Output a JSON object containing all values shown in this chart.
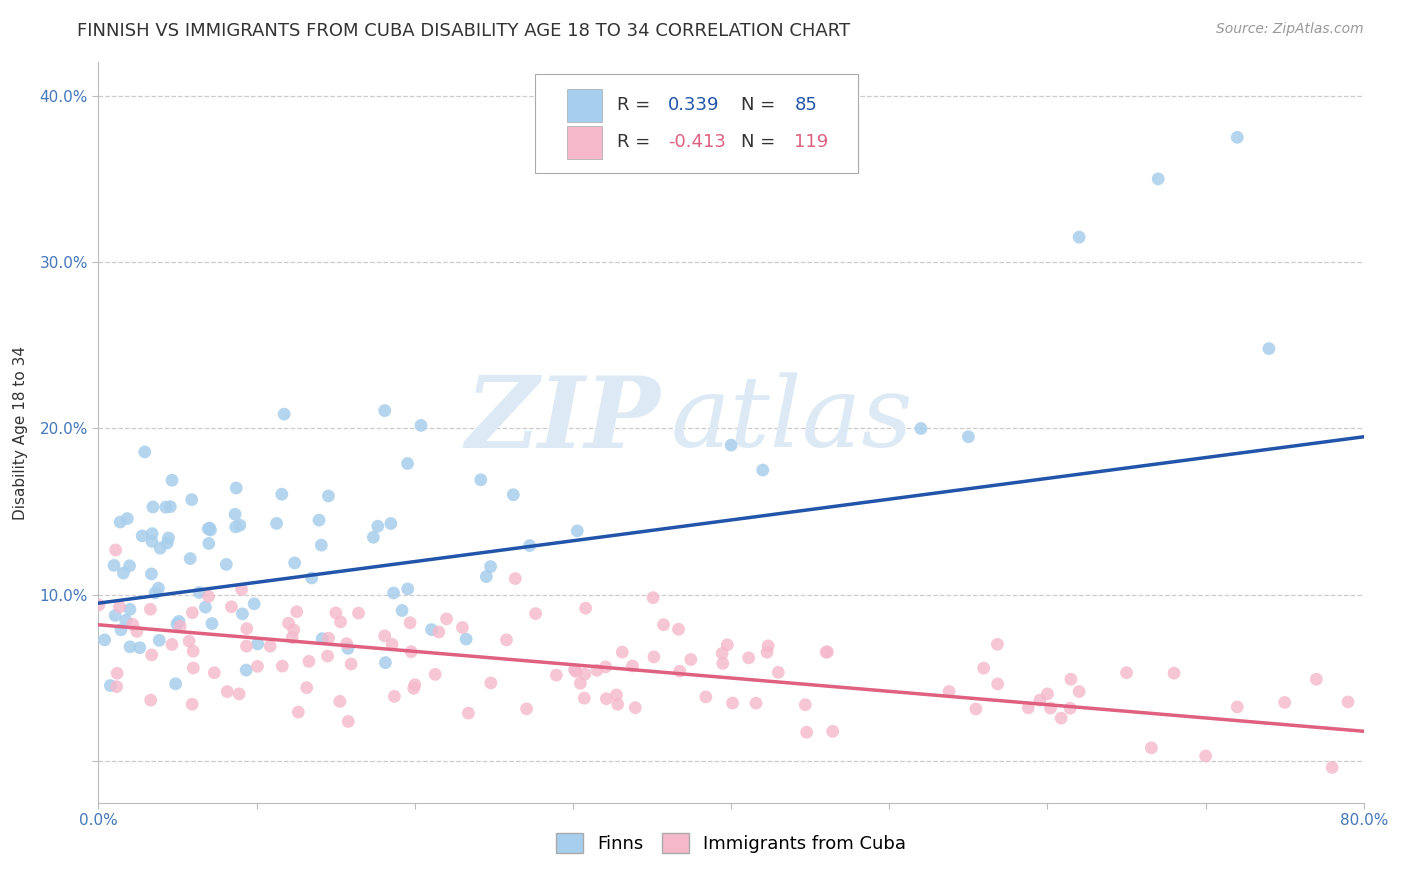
{
  "title": "FINNISH VS IMMIGRANTS FROM CUBA DISABILITY AGE 18 TO 34 CORRELATION CHART",
  "source": "Source: ZipAtlas.com",
  "ylabel": "Disability Age 18 to 34",
  "xlim": [
    0.0,
    0.8
  ],
  "ylim": [
    -0.025,
    0.42
  ],
  "xticks": [
    0.0,
    0.1,
    0.2,
    0.3,
    0.4,
    0.5,
    0.6,
    0.7,
    0.8
  ],
  "xticklabels_shown": {
    "0.0": "0.0%",
    "0.80": "80.0%"
  },
  "yticks": [
    0.0,
    0.1,
    0.2,
    0.3,
    0.4
  ],
  "yticklabels": [
    "",
    "10.0%",
    "20.0%",
    "30.0%",
    "40.0%"
  ],
  "finns_R": 0.339,
  "finns_N": 85,
  "cuba_R": -0.413,
  "cuba_N": 119,
  "finns_color": "#A8CEED",
  "cuba_color": "#F5B8CB",
  "finns_line_color": "#2255AA",
  "cuba_line_color": "#E06080",
  "background_color": "#FFFFFF",
  "grid_color": "#CCCCCC",
  "title_fontsize": 13,
  "axis_label_fontsize": 11,
  "tick_fontsize": 11,
  "legend_fontsize": 13,
  "source_fontsize": 10,
  "seed": 99,
  "finns_line_x0": 0.0,
  "finns_line_y0": 0.095,
  "finns_line_x1": 0.8,
  "finns_line_y1": 0.195,
  "cuba_line_x0": 0.0,
  "cuba_line_y0": 0.082,
  "cuba_line_x1": 0.8,
  "cuba_line_y1": 0.018
}
